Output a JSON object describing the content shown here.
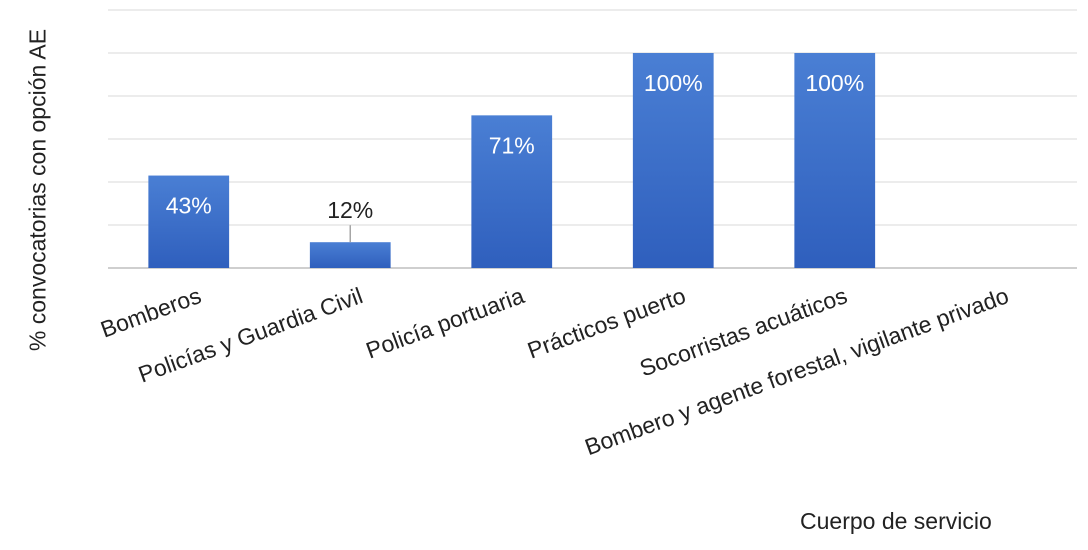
{
  "chart_data": {
    "type": "bar",
    "categories": [
      "Bomberos",
      "Policías y Guardia Civil",
      "Policía portuaria",
      "Prácticos puerto",
      "Socorristas acuáticos",
      "Bombero y agente forestal, vigilante privado"
    ],
    "values": [
      43,
      12,
      71,
      100,
      100,
      0
    ],
    "data_labels": [
      "43%",
      "12%",
      "71%",
      "100%",
      "100%",
      ""
    ],
    "xlabel": "Cuerpo de servicio",
    "ylabel": "% convocatorias con opción AE",
    "ylim": [
      0,
      120
    ],
    "grid": true,
    "bar_color_top": "#4a7fd4",
    "bar_color_bottom": "#2f5fbd",
    "grid_color": "#d9d9d9"
  }
}
